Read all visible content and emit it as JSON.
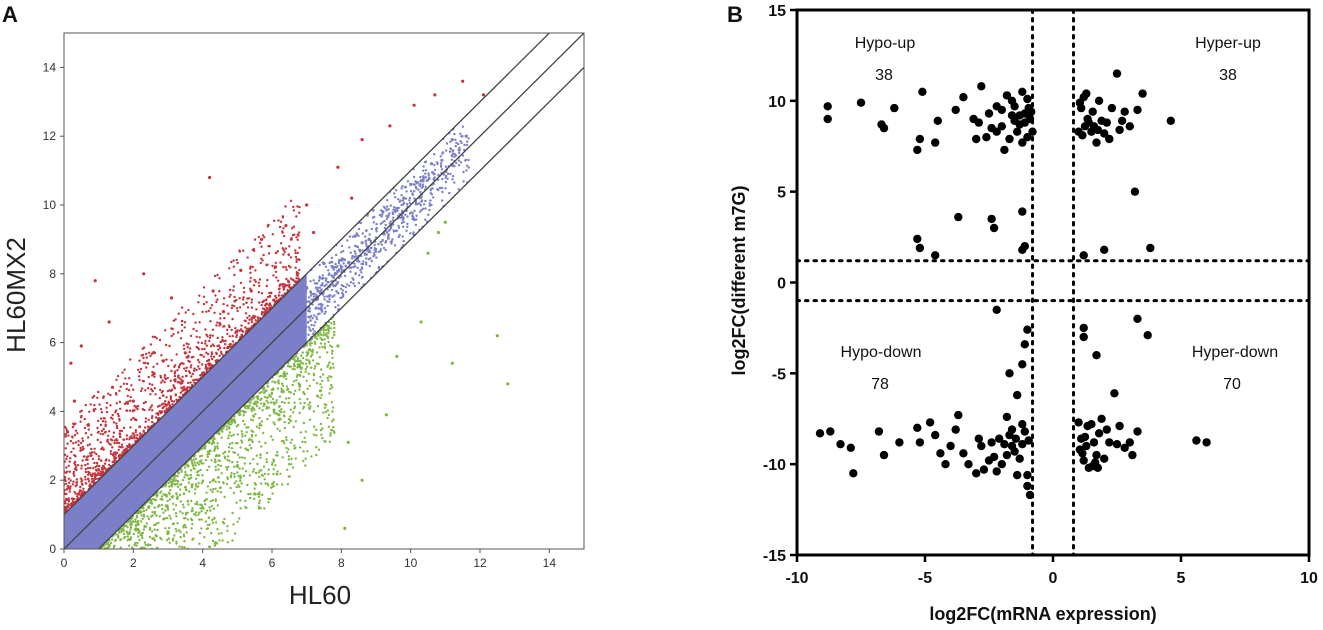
{
  "panels": {
    "a_label": "A",
    "b_label": "B"
  },
  "chart_data": [
    {
      "type": "scatter",
      "panel": "A",
      "xlabel": "HL60",
      "ylabel": "HL60MX2",
      "xlim": [
        0,
        15
      ],
      "ylim": [
        0,
        15
      ],
      "xticks": [
        0,
        2,
        4,
        6,
        8,
        10,
        12,
        14
      ],
      "yticks": [
        0,
        2,
        4,
        6,
        8,
        10,
        12,
        14
      ],
      "reference_lines": [
        {
          "name": "y = x + 1",
          "offset": 1
        },
        {
          "name": "y = x",
          "offset": 0
        },
        {
          "name": "y = x - 1",
          "offset": -1
        }
      ],
      "series": [
        {
          "name": "up",
          "color": "#c8323c",
          "points": [
            [
              0.2,
              5.4
            ],
            [
              0.5,
              5.9
            ],
            [
              0.9,
              7.8
            ],
            [
              1.3,
              6.6
            ],
            [
              2.3,
              8.0
            ],
            [
              3.1,
              7.3
            ],
            [
              4.2,
              10.8
            ],
            [
              4.3,
              7.5
            ],
            [
              5.1,
              8.1
            ],
            [
              5.7,
              9.0
            ],
            [
              6.4,
              9.4
            ],
            [
              7.0,
              10.0
            ],
            [
              7.9,
              11.1
            ],
            [
              8.6,
              11.9
            ],
            [
              9.4,
              12.3
            ],
            [
              10.1,
              12.9
            ],
            [
              10.7,
              13.2
            ],
            [
              11.5,
              13.6
            ],
            [
              12.1,
              13.2
            ],
            [
              0.1,
              3.4
            ],
            [
              0.3,
              4.3
            ],
            [
              0.7,
              3.6
            ],
            [
              1.4,
              4.7
            ],
            [
              2.0,
              4.3
            ],
            [
              2.6,
              5.1
            ],
            [
              3.5,
              5.7
            ],
            [
              4.6,
              6.9
            ],
            [
              5.4,
              7.5
            ],
            [
              6.1,
              8.2
            ],
            [
              7.2,
              9.2
            ],
            [
              8.3,
              10.2
            ]
          ]
        },
        {
          "name": "unchanged",
          "color": "#7b7fc8",
          "points": [
            [
              7.0,
              7.6
            ],
            [
              7.5,
              8.3
            ],
            [
              8.0,
              8.4
            ],
            [
              8.4,
              9.1
            ],
            [
              8.8,
              9.0
            ],
            [
              9.2,
              9.8
            ],
            [
              9.6,
              9.9
            ],
            [
              10.0,
              10.6
            ],
            [
              10.3,
              10.7
            ],
            [
              10.6,
              11.2
            ],
            [
              10.9,
              11.3
            ],
            [
              11.2,
              11.9
            ],
            [
              11.4,
              11.6
            ],
            [
              11.6,
              12.0
            ],
            [
              9.8,
              10.2
            ],
            [
              8.6,
              8.9
            ]
          ]
        },
        {
          "name": "down",
          "color": "#7fb845",
          "points": [
            [
              3.0,
              0.5
            ],
            [
              4.0,
              1.2
            ],
            [
              5.0,
              2.4
            ],
            [
              5.5,
              1.6
            ],
            [
              6.2,
              3.9
            ],
            [
              6.8,
              5.3
            ],
            [
              7.4,
              4.6
            ],
            [
              7.9,
              5.9
            ],
            [
              8.1,
              0.6
            ],
            [
              8.2,
              3.1
            ],
            [
              8.6,
              2.0
            ],
            [
              9.3,
              3.9
            ],
            [
              9.6,
              5.6
            ],
            [
              10.3,
              6.6
            ],
            [
              11.2,
              5.4
            ],
            [
              12.5,
              6.2
            ],
            [
              12.8,
              4.8
            ],
            [
              10.5,
              8.6
            ],
            [
              11.0,
              9.5
            ],
            [
              10.8,
              9.2
            ]
          ]
        }
      ]
    },
    {
      "type": "scatter",
      "panel": "B",
      "xlabel": "log2FC(mRNA expression)",
      "ylabel": "log2FC(different m7G)",
      "xlim": [
        -10,
        10
      ],
      "ylim": [
        -15,
        15
      ],
      "xticks": [
        -10,
        -5,
        0,
        5,
        10
      ],
      "yticks": [
        -15,
        -10,
        -5,
        0,
        5,
        10,
        15
      ],
      "thresholds": {
        "x": [
          -0.8,
          0.8
        ],
        "y": [
          -1.0,
          1.2
        ]
      },
      "quadrants": [
        {
          "id": "hypo-up",
          "name": "Hypo-up",
          "count": "38",
          "pos": "top-left"
        },
        {
          "id": "hyper-up",
          "name": "Hyper-up",
          "count": "38",
          "pos": "top-right"
        },
        {
          "id": "hypo-down",
          "name": "Hypo-down",
          "count": "78",
          "pos": "bottom-left"
        },
        {
          "id": "hyper-down",
          "name": "Hyper-down",
          "count": "70",
          "pos": "bottom-right"
        }
      ],
      "series": [
        {
          "name": "genes",
          "color": "#000000",
          "points": [
            [
              -8.8,
              9.7
            ],
            [
              -8.8,
              9.0
            ],
            [
              -7.5,
              9.9
            ],
            [
              -6.7,
              8.7
            ],
            [
              -6.6,
              8.5
            ],
            [
              -6.2,
              9.6
            ],
            [
              -5.3,
              7.3
            ],
            [
              -5.2,
              7.9
            ],
            [
              -5.1,
              10.5
            ],
            [
              -4.6,
              7.7
            ],
            [
              -4.5,
              8.9
            ],
            [
              -3.8,
              9.5
            ],
            [
              -3.5,
              10.2
            ],
            [
              -3.0,
              7.9
            ],
            [
              -2.8,
              10.8
            ],
            [
              -2.5,
              9.3
            ],
            [
              -2.2,
              9.7
            ],
            [
              -2.0,
              9.5
            ],
            [
              -1.8,
              10.3
            ],
            [
              -1.6,
              10.0
            ],
            [
              -1.5,
              9.7
            ],
            [
              -1.3,
              9.2
            ],
            [
              -1.2,
              10.5
            ],
            [
              -1.0,
              10.1
            ],
            [
              -0.9,
              9.0
            ],
            [
              -0.8,
              8.3
            ],
            [
              -2.6,
              8.0
            ],
            [
              -2.0,
              8.6
            ],
            [
              -1.9,
              7.3
            ],
            [
              -1.7,
              7.9
            ],
            [
              -1.4,
              8.3
            ],
            [
              -1.2,
              7.7
            ],
            [
              -1.1,
              8.8
            ],
            [
              -0.95,
              9.6
            ],
            [
              -2.9,
              8.8
            ],
            [
              -3.1,
              9.0
            ],
            [
              -2.4,
              8.5
            ],
            [
              -1.6,
              9.2
            ],
            [
              -1.3,
              8.7
            ],
            [
              -1.0,
              8.0
            ],
            [
              -0.85,
              9.4
            ],
            [
              -2.2,
              8.3
            ],
            [
              -1.5,
              8.9
            ],
            [
              -1.1,
              9.3
            ],
            [
              1.0,
              8.3
            ],
            [
              1.1,
              9.6
            ],
            [
              1.2,
              10.2
            ],
            [
              1.3,
              10.4
            ],
            [
              1.4,
              8.8
            ],
            [
              1.5,
              8.3
            ],
            [
              1.6,
              8.6
            ],
            [
              1.7,
              7.7
            ],
            [
              1.8,
              10.0
            ],
            [
              1.9,
              8.9
            ],
            [
              2.0,
              8.2
            ],
            [
              2.1,
              8.8
            ],
            [
              2.3,
              9.6
            ],
            [
              2.5,
              11.5
            ],
            [
              2.6,
              8.4
            ],
            [
              2.8,
              9.4
            ],
            [
              3.0,
              8.6
            ],
            [
              3.3,
              9.5
            ],
            [
              3.5,
              10.4
            ],
            [
              4.6,
              8.9
            ],
            [
              1.15,
              8.1
            ],
            [
              1.35,
              9.0
            ],
            [
              1.55,
              9.4
            ],
            [
              1.75,
              8.4
            ],
            [
              2.2,
              7.9
            ],
            [
              1.05,
              9.9
            ],
            [
              2.7,
              8.9
            ],
            [
              1.25,
              8.6
            ],
            [
              3.2,
              5.0
            ],
            [
              3.8,
              1.9
            ],
            [
              2.0,
              1.8
            ],
            [
              1.2,
              1.5
            ],
            [
              -1.2,
              3.9
            ],
            [
              -1.1,
              2.0
            ],
            [
              -1.2,
              1.8
            ],
            [
              -2.4,
              3.5
            ],
            [
              -2.3,
              3.0
            ],
            [
              -3.7,
              3.6
            ],
            [
              -5.3,
              2.4
            ],
            [
              -5.2,
              1.9
            ],
            [
              -4.6,
              1.5
            ],
            [
              3.3,
              -2.0
            ],
            [
              3.7,
              -2.9
            ],
            [
              1.2,
              -2.5
            ],
            [
              1.2,
              -3.0
            ],
            [
              1.7,
              -4.0
            ],
            [
              -1.0,
              -2.6
            ],
            [
              -1.7,
              -5.0
            ],
            [
              -2.2,
              -1.5
            ],
            [
              -1.2,
              -4.5
            ],
            [
              -1.1,
              -3.4
            ],
            [
              -1.4,
              -6.2
            ],
            [
              -8.7,
              -8.2
            ],
            [
              -9.1,
              -8.3
            ],
            [
              -8.3,
              -8.9
            ],
            [
              -7.9,
              -9.1
            ],
            [
              -7.8,
              -10.5
            ],
            [
              -6.8,
              -8.2
            ],
            [
              -6.6,
              -9.5
            ],
            [
              -6.0,
              -8.8
            ],
            [
              -5.3,
              -8.0
            ],
            [
              -5.2,
              -8.8
            ],
            [
              -4.8,
              -7.7
            ],
            [
              -4.6,
              -8.4
            ],
            [
              -4.4,
              -9.4
            ],
            [
              -4.2,
              -10.0
            ],
            [
              -3.8,
              -8.1
            ],
            [
              -3.5,
              -9.4
            ],
            [
              -3.3,
              -10.0
            ],
            [
              -2.9,
              -8.6
            ],
            [
              -2.7,
              -10.3
            ],
            [
              -2.5,
              -9.8
            ],
            [
              -2.3,
              -9.6
            ],
            [
              -2.1,
              -8.6
            ],
            [
              -1.9,
              -8.9
            ],
            [
              -1.8,
              -7.4
            ],
            [
              -1.7,
              -8.4
            ],
            [
              -1.6,
              -8.1
            ],
            [
              -1.5,
              -9.3
            ],
            [
              -1.4,
              -10.6
            ],
            [
              -1.2,
              -8.9
            ],
            [
              -1.1,
              -8.2
            ],
            [
              -1.0,
              -11.2
            ],
            [
              -0.9,
              -11.7
            ],
            [
              -1.0,
              -10.6
            ],
            [
              -3.7,
              -7.3
            ],
            [
              -2.0,
              -10.0
            ],
            [
              -2.4,
              -8.8
            ],
            [
              -1.3,
              -9.7
            ],
            [
              -0.95,
              -8.7
            ],
            [
              -2.8,
              -9.0
            ],
            [
              -1.6,
              -9.0
            ],
            [
              -2.2,
              -10.4
            ],
            [
              -1.2,
              -7.8
            ],
            [
              -1.45,
              -8.6
            ],
            [
              -1.8,
              -9.5
            ],
            [
              -3.0,
              -10.5
            ],
            [
              -4.0,
              -9.0
            ],
            [
              1.0,
              -7.7
            ],
            [
              1.1,
              -8.6
            ],
            [
              1.2,
              -9.8
            ],
            [
              1.3,
              -9.0
            ],
            [
              1.4,
              -10.2
            ],
            [
              1.5,
              -7.8
            ],
            [
              1.6,
              -8.8
            ],
            [
              1.7,
              -9.5
            ],
            [
              1.8,
              -8.3
            ],
            [
              1.9,
              -7.5
            ],
            [
              2.0,
              -9.7
            ],
            [
              2.2,
              -8.8
            ],
            [
              2.4,
              -6.1
            ],
            [
              2.6,
              -7.9
            ],
            [
              2.8,
              -9.1
            ],
            [
              3.0,
              -8.8
            ],
            [
              3.1,
              -9.5
            ],
            [
              3.3,
              -8.2
            ],
            [
              5.6,
              -8.7
            ],
            [
              6.0,
              -8.8
            ],
            [
              1.15,
              -9.4
            ],
            [
              1.35,
              -7.9
            ],
            [
              1.55,
              -10.1
            ],
            [
              1.75,
              -10.2
            ],
            [
              2.1,
              -8.1
            ],
            [
              1.05,
              -9.2
            ],
            [
              1.25,
              -8.5
            ],
            [
              2.5,
              -8.9
            ],
            [
              1.65,
              -9.9
            ]
          ]
        }
      ]
    }
  ]
}
